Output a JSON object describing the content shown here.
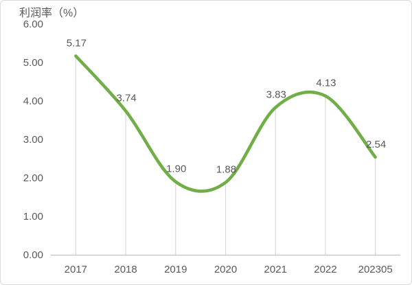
{
  "chart_data": {
    "type": "line",
    "title": "利润率（%）",
    "ylabel": "利润率 (%)",
    "xlabel": "",
    "categories": [
      "2017",
      "2018",
      "2019",
      "2020",
      "2021",
      "2022",
      "202305"
    ],
    "values": [
      5.17,
      3.74,
      1.9,
      1.88,
      3.83,
      4.13,
      2.54
    ],
    "value_labels": [
      "5.17",
      "3.74",
      "1.90",
      "1.88",
      "3.83",
      "4.13",
      "2.54"
    ],
    "ylim": [
      0,
      6
    ],
    "y_ticks": [
      6,
      5,
      4,
      3,
      2,
      1,
      0
    ],
    "y_tick_labels": [
      "6.00",
      "5.00",
      "4.00",
      "3.00",
      "2.00",
      "1.00",
      "0.00"
    ],
    "smooth": true,
    "grid": false,
    "drop_lines": true,
    "legend_position": "none",
    "colors": {
      "line": "#72AE48",
      "text": "#595959",
      "axis": "#BFBFBF",
      "drop_line": "#D9D9D9",
      "border": "#D9D9D9",
      "background": "#FFFFFF"
    }
  }
}
